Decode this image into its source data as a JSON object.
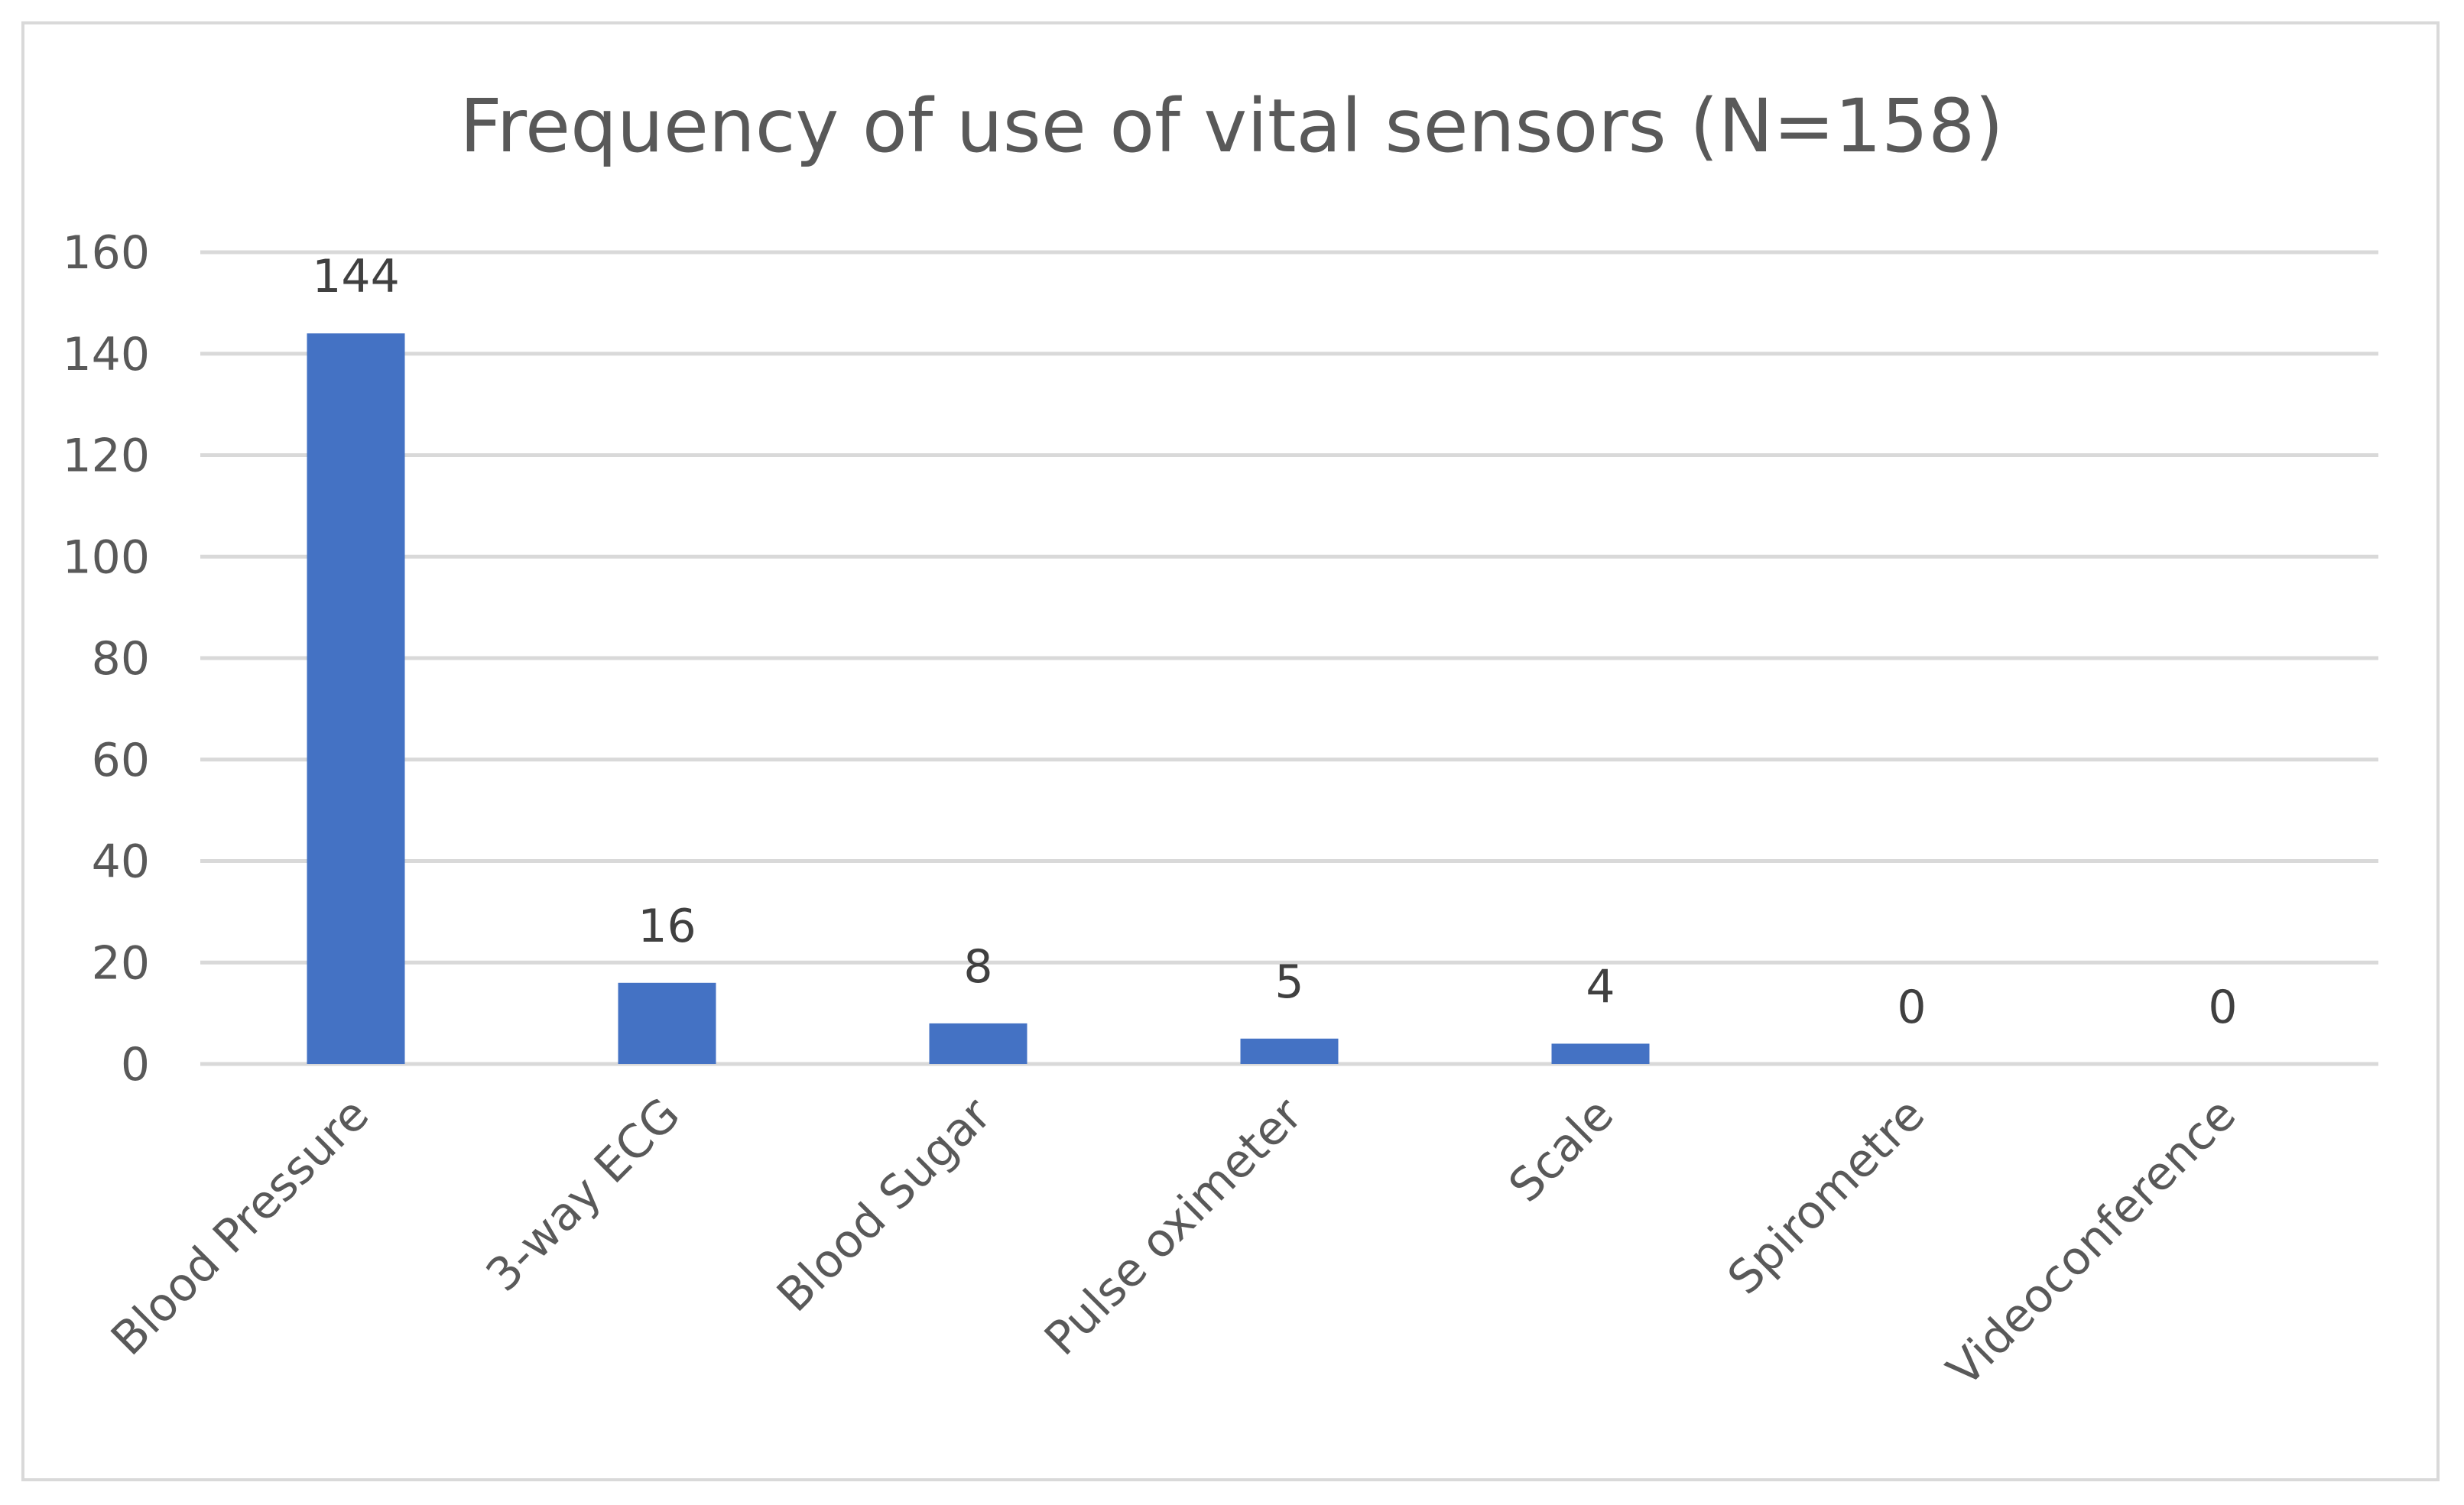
{
  "chart_data": {
    "type": "bar",
    "title": "Frequency of use of vital sensors (N=158)",
    "categories": [
      "Blood Pressure",
      "3-way ECG",
      "Blood Sugar",
      "Pulse oximeter",
      "Scale",
      "Spirometre",
      "Videoconference"
    ],
    "values": [
      144,
      16,
      8,
      5,
      4,
      0,
      0
    ],
    "data_labels": [
      "144",
      "16",
      "8",
      "5",
      "4",
      "0",
      "0"
    ],
    "ylim": [
      0,
      160
    ],
    "yticks": [
      0,
      20,
      40,
      60,
      80,
      100,
      120,
      140,
      160
    ],
    "xlabel": "",
    "ylabel": "",
    "grid": true,
    "legend": "none",
    "colors": {
      "bar": "#4472c4",
      "grid": "#d9d9d9",
      "text": "#595959",
      "border": "#d9d9d9"
    }
  }
}
